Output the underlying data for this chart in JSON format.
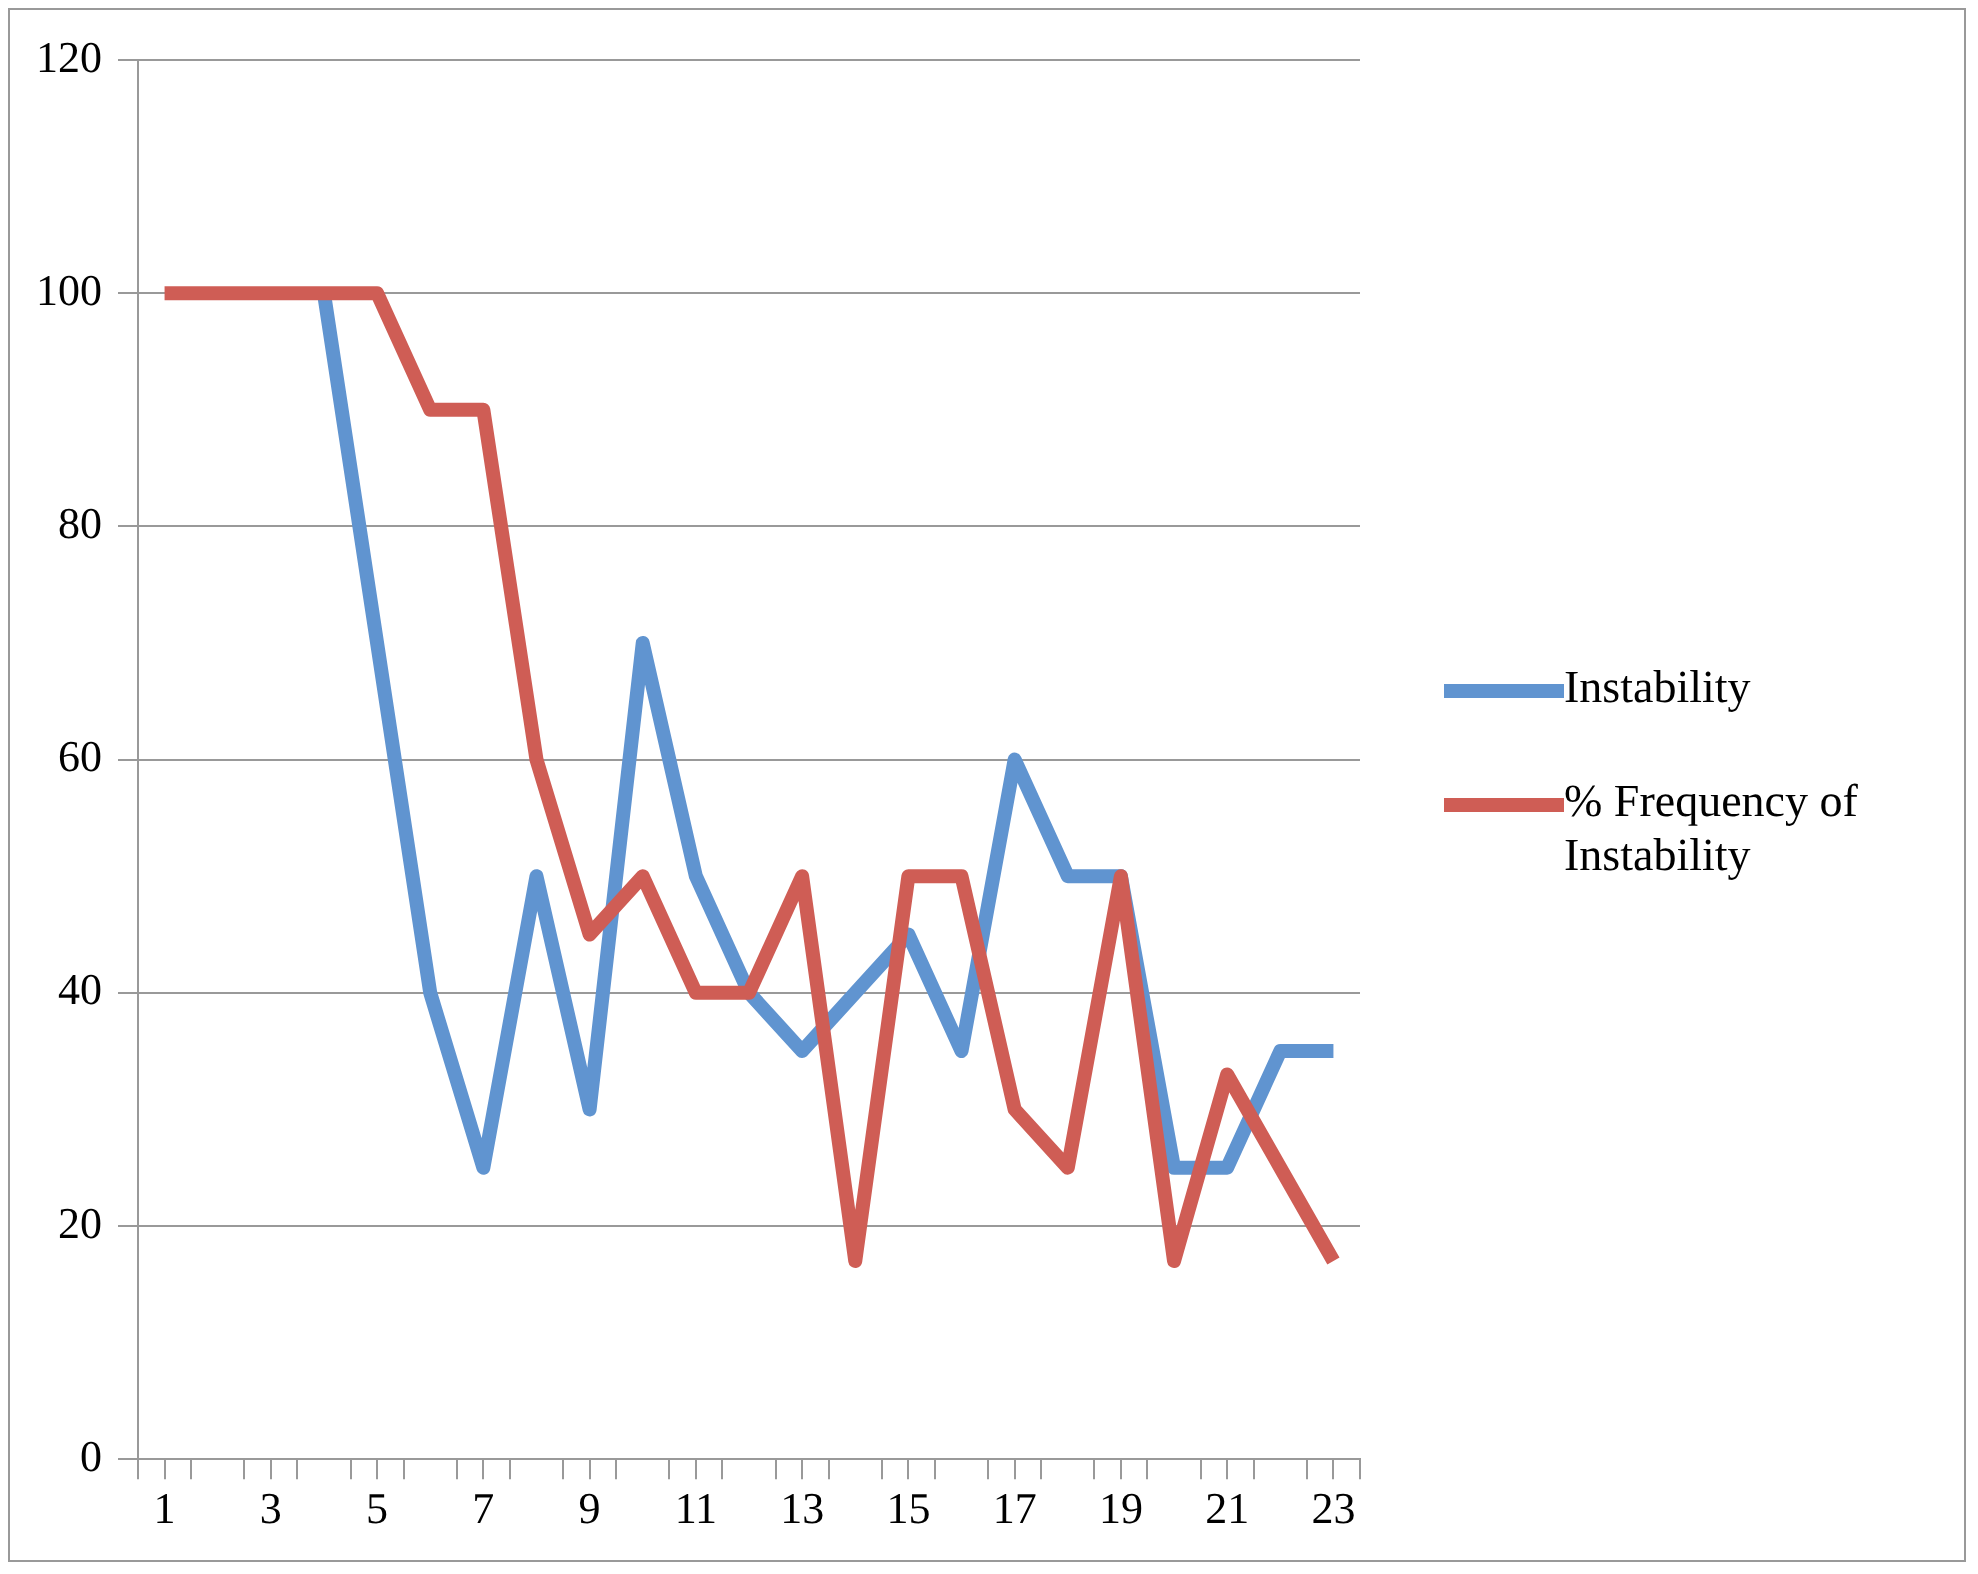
{
  "chart_data": {
    "type": "line",
    "x": [
      1,
      2,
      3,
      4,
      5,
      6,
      7,
      8,
      9,
      10,
      11,
      12,
      13,
      14,
      15,
      16,
      17,
      18,
      19,
      20,
      21,
      22,
      23
    ],
    "series": [
      {
        "name": "Instability",
        "color": "#6094d0",
        "values": [
          null,
          null,
          null,
          100,
          70,
          40,
          25,
          50,
          30,
          70,
          50,
          40,
          35,
          40,
          45,
          35,
          60,
          50,
          50,
          25,
          25,
          35,
          35
        ]
      },
      {
        "name": "% Frequency of Instability",
        "color": "#cf5d55",
        "values": [
          100,
          100,
          100,
          100,
          100,
          90,
          90,
          60,
          45,
          50,
          40,
          40,
          50,
          17,
          50,
          50,
          30,
          25,
          50,
          17,
          33,
          25,
          17
        ]
      }
    ],
    "xlim": [
      0.5,
      23.5
    ],
    "xticks": [
      {
        "value": 0.5,
        "label": null
      },
      1,
      {
        "value": 1.5,
        "label": null
      },
      {
        "value": 2.5,
        "label": null
      },
      3,
      {
        "value": 3.5,
        "label": null
      },
      {
        "value": 4.5,
        "label": null
      },
      5,
      {
        "value": 5.5,
        "label": null
      },
      {
        "value": 6.5,
        "label": null
      },
      7,
      {
        "value": 7.5,
        "label": null
      },
      {
        "value": 8.5,
        "label": null
      },
      9,
      {
        "value": 9.5,
        "label": null
      },
      {
        "value": 10.5,
        "label": null
      },
      11,
      {
        "value": 11.5,
        "label": null
      },
      {
        "value": 12.5,
        "label": null
      },
      13,
      {
        "value": 13.5,
        "label": null
      },
      {
        "value": 14.5,
        "label": null
      },
      15,
      {
        "value": 15.5,
        "label": null
      },
      {
        "value": 16.5,
        "label": null
      },
      17,
      {
        "value": 17.5,
        "label": null
      },
      {
        "value": 18.5,
        "label": null
      },
      19,
      {
        "value": 19.5,
        "label": null
      },
      {
        "value": 20.5,
        "label": null
      },
      21,
      {
        "value": 21.5,
        "label": null
      },
      {
        "value": 22.5,
        "label": null
      },
      23,
      {
        "value": 23.5,
        "label": null
      }
    ],
    "ylim": [
      0,
      120
    ],
    "yticks": [
      0,
      20,
      40,
      60,
      80,
      100,
      120
    ],
    "grid": "y",
    "legend": "right",
    "marker": "none",
    "line_style": "solid"
  }
}
